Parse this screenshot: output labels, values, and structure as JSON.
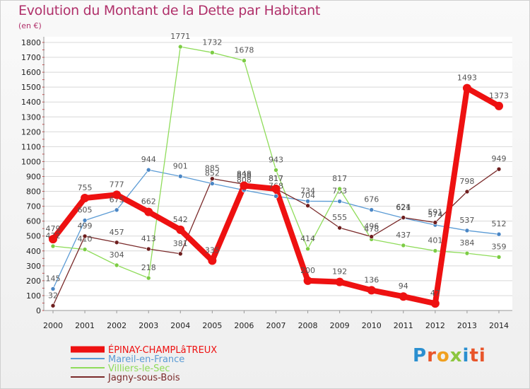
{
  "chart_data": {
    "type": "line",
    "title": "Evolution du Montant de la Dette par Habitant",
    "unit": "(en €)",
    "xlabel": "",
    "ylabel": "",
    "ylim": [
      0,
      1800
    ],
    "yticks": [
      0,
      100,
      200,
      300,
      400,
      500,
      600,
      700,
      800,
      900,
      1000,
      1100,
      1200,
      1300,
      1400,
      1500,
      1600,
      1700,
      1800
    ],
    "categories": [
      "2000",
      "2001",
      "2002",
      "2003",
      "2004",
      "2005",
      "2006",
      "2007",
      "2008",
      "2009",
      "2010",
      "2011",
      "2012",
      "2013",
      "2014"
    ],
    "series": [
      {
        "name": "Mareil-en-France",
        "color": "#5b9bd5",
        "marker": "#4a86c5",
        "values": [
          145,
          605,
          675,
          944,
          901,
          852,
          808,
          768,
          734,
          733,
          676,
          621,
          574,
          537,
          512
        ]
      },
      {
        "name": "Villiers-le-Sec",
        "color": "#8fdc5a",
        "marker": "#7ccc44",
        "values": [
          432,
          410,
          304,
          218,
          1771,
          1732,
          1678,
          943,
          414,
          817,
          478,
          437,
          401,
          384,
          359
        ]
      },
      {
        "name": "Jagny-sous-Bois",
        "color": "#7a2a2a",
        "marker": "#6e1e1e",
        "values": [
          32,
          499,
          457,
          413,
          381,
          885,
          848,
          817,
          704,
          555,
          496,
          624,
          591,
          798,
          949
        ]
      },
      {
        "name": "ÉPINAY-CHAMPLâTREUX",
        "color": "#ee1111",
        "marker": "#ee1111",
        "thick": true,
        "values": [
          479,
          755,
          777,
          662,
          542,
          335,
          838,
          817,
          200,
          192,
          136,
          94,
          47,
          1493,
          1373
        ]
      }
    ],
    "legend": [
      {
        "name": "ÉPINAY-CHAMPLâTREUX",
        "color": "#ee1111",
        "thick": true
      },
      {
        "name": "Mareil-en-France",
        "color": "#5b9bd5"
      },
      {
        "name": "Villiers-le-Sec",
        "color": "#8fdc5a"
      },
      {
        "name": "Jagny-sous-Bois",
        "color": "#7a2a2a"
      }
    ]
  },
  "logo": {
    "letters": [
      "P",
      "r",
      "o",
      "x",
      "i",
      "ti"
    ]
  }
}
